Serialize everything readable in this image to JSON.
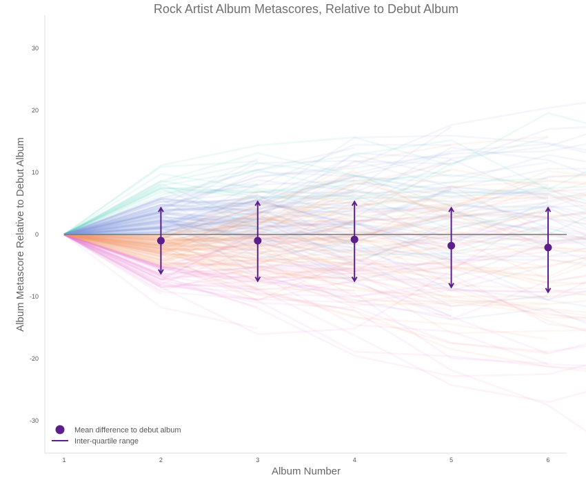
{
  "chart_data": {
    "type": "line",
    "title": "Rock Artist Album Metascores, Relative to Debut Album",
    "xlabel": "Album Number",
    "ylabel": "Album Metascore Relative to Debut Album",
    "x_ticks": [
      "1",
      "2",
      "3",
      "4",
      "5",
      "6"
    ],
    "y_ticks": [
      "-30",
      "-20",
      "-10",
      "0",
      "10",
      "20",
      "30"
    ],
    "xlim": [
      0.8,
      6.2
    ],
    "ylim": [
      -35,
      35
    ],
    "grid": false,
    "legend_position": "bottom-left",
    "legend": {
      "mean_label": "Mean difference to debut album",
      "iqr_label": "Inter-quartile range"
    },
    "summary": {
      "x": [
        2,
        3,
        4,
        5,
        6
      ],
      "mean": [
        -1,
        -1,
        -0.8,
        -1.8,
        -2.1
      ],
      "q1": [
        -6.3,
        -7.5,
        -7.5,
        -8.5,
        -9.3
      ],
      "q3": [
        4.3,
        5.3,
        5.3,
        4.3,
        4.3
      ]
    },
    "colors": {
      "summary": "#5b1f8a",
      "zero_line": "#777777",
      "improving": "#3cc6b4",
      "mid_positive": "#8899dd",
      "mid_negative": "#f4a070",
      "declining": "#ec7cd8"
    }
  }
}
